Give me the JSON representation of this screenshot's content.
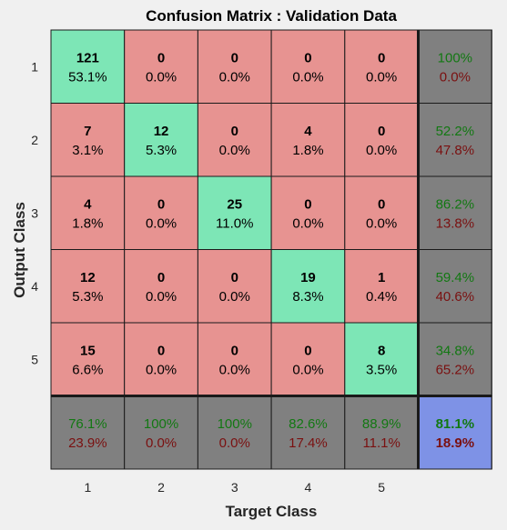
{
  "chart_data": {
    "type": "heatmap",
    "title": "Confusion Matrix : Validation Data",
    "xlabel": "Target Class",
    "ylabel": "Output Class",
    "classes": [
      "1",
      "2",
      "3",
      "4",
      "5"
    ],
    "rows": [
      {
        "counts": [
          "121",
          "0",
          "0",
          "0",
          "0"
        ],
        "percents": [
          "53.1%",
          "0.0%",
          "0.0%",
          "0.0%",
          "0.0%"
        ],
        "summary": [
          "100%",
          "0.0%"
        ]
      },
      {
        "counts": [
          "7",
          "12",
          "0",
          "4",
          "0"
        ],
        "percents": [
          "3.1%",
          "5.3%",
          "0.0%",
          "1.8%",
          "0.0%"
        ],
        "summary": [
          "52.2%",
          "47.8%"
        ]
      },
      {
        "counts": [
          "4",
          "0",
          "25",
          "0",
          "0"
        ],
        "percents": [
          "1.8%",
          "0.0%",
          "11.0%",
          "0.0%",
          "0.0%"
        ],
        "summary": [
          "86.2%",
          "13.8%"
        ]
      },
      {
        "counts": [
          "12",
          "0",
          "0",
          "19",
          "1"
        ],
        "percents": [
          "5.3%",
          "0.0%",
          "0.0%",
          "8.3%",
          "0.4%"
        ],
        "summary": [
          "59.4%",
          "40.6%"
        ]
      },
      {
        "counts": [
          "15",
          "0",
          "0",
          "0",
          "8"
        ],
        "percents": [
          "6.6%",
          "0.0%",
          "0.0%",
          "0.0%",
          "3.5%"
        ],
        "summary": [
          "34.8%",
          "65.2%"
        ]
      }
    ],
    "column_summary": [
      [
        "76.1%",
        "23.9%"
      ],
      [
        "100%",
        "0.0%"
      ],
      [
        "100%",
        "0.0%"
      ],
      [
        "82.6%",
        "17.4%"
      ],
      [
        "88.9%",
        "11.1%"
      ]
    ],
    "overall": [
      "81.1%",
      "18.9%"
    ],
    "colors": {
      "diagonal": "#7de6b6",
      "off_diagonal": "#e79391",
      "summary": "#808080",
      "overall": "#7e92e6",
      "correct_text": "#127812",
      "wrong_text": "#7a1010",
      "border": "#1a1a1a"
    }
  }
}
